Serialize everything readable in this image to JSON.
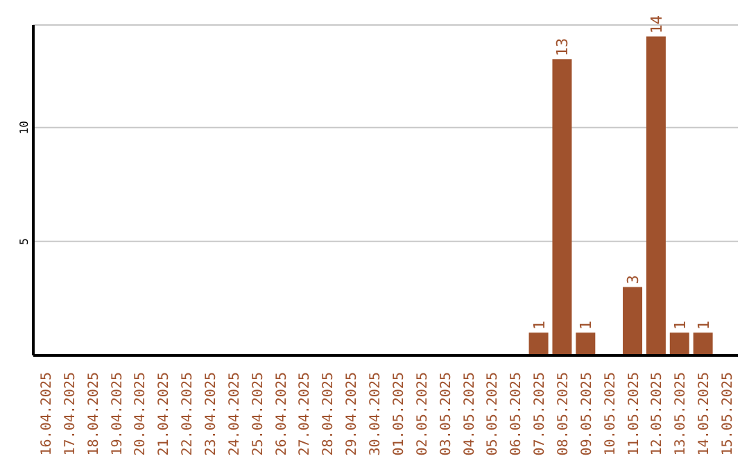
{
  "chart_data": {
    "type": "bar",
    "categories": [
      "16.04.2025",
      "17.04.2025",
      "18.04.2025",
      "19.04.2025",
      "20.04.2025",
      "21.04.2025",
      "22.04.2025",
      "23.04.2025",
      "24.04.2025",
      "25.04.2025",
      "26.04.2025",
      "27.04.2025",
      "28.04.2025",
      "29.04.2025",
      "30.04.2025",
      "01.05.2025",
      "02.05.2025",
      "03.05.2025",
      "04.05.2025",
      "05.05.2025",
      "06.05.2025",
      "07.05.2025",
      "08.05.2025",
      "09.05.2025",
      "10.05.2025",
      "11.05.2025",
      "12.05.2025",
      "13.05.2025",
      "14.05.2025",
      "15.05.2025"
    ],
    "values": [
      null,
      null,
      null,
      null,
      null,
      null,
      null,
      null,
      null,
      null,
      null,
      null,
      null,
      null,
      null,
      null,
      null,
      null,
      null,
      null,
      null,
      1,
      13,
      1,
      null,
      3,
      14,
      1,
      1,
      null
    ],
    "color": "#a0522d",
    "ylim": [
      0,
      14.5
    ],
    "yticks": [
      5,
      10
    ],
    "grid": "y",
    "data_labels": true
  }
}
